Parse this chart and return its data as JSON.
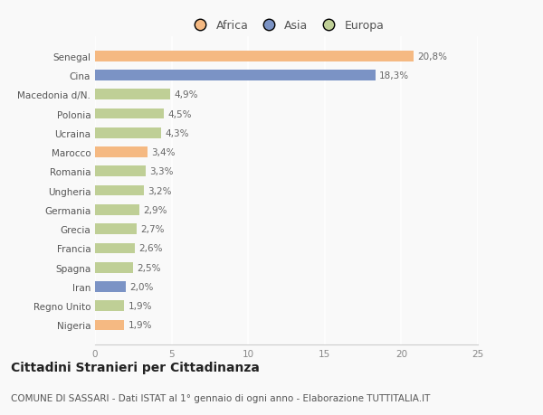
{
  "categories": [
    "Senegal",
    "Cina",
    "Macedonia d/N.",
    "Polonia",
    "Ucraina",
    "Marocco",
    "Romania",
    "Ungheria",
    "Germania",
    "Grecia",
    "Francia",
    "Spagna",
    "Iran",
    "Regno Unito",
    "Nigeria"
  ],
  "values": [
    20.8,
    18.3,
    4.9,
    4.5,
    4.3,
    3.4,
    3.3,
    3.2,
    2.9,
    2.7,
    2.6,
    2.5,
    2.0,
    1.9,
    1.9
  ],
  "labels": [
    "20,8%",
    "18,3%",
    "4,9%",
    "4,5%",
    "4,3%",
    "3,4%",
    "3,3%",
    "3,2%",
    "2,9%",
    "2,7%",
    "2,6%",
    "2,5%",
    "2,0%",
    "1,9%",
    "1,9%"
  ],
  "colors": [
    "#f5b982",
    "#7b93c5",
    "#bfcf96",
    "#bfcf96",
    "#bfcf96",
    "#f5b982",
    "#bfcf96",
    "#bfcf96",
    "#bfcf96",
    "#bfcf96",
    "#bfcf96",
    "#bfcf96",
    "#7b93c5",
    "#bfcf96",
    "#f5b982"
  ],
  "legend": [
    {
      "label": "Africa",
      "color": "#f5b982"
    },
    {
      "label": "Asia",
      "color": "#7b93c5"
    },
    {
      "label": "Europa",
      "color": "#bfcf96"
    }
  ],
  "xlim": [
    0,
    25
  ],
  "xticks": [
    0,
    5,
    10,
    15,
    20,
    25
  ],
  "title": "Cittadini Stranieri per Cittadinanza",
  "subtitle": "COMUNE DI SASSARI - Dati ISTAT al 1° gennaio di ogni anno - Elaborazione TUTTITALIA.IT",
  "bg_color": "#f9f9f9",
  "grid_color": "#ffffff",
  "bar_height": 0.55,
  "title_fontsize": 10,
  "subtitle_fontsize": 7.5,
  "legend_fontsize": 9,
  "tick_fontsize": 7.5,
  "value_fontsize": 7.5
}
